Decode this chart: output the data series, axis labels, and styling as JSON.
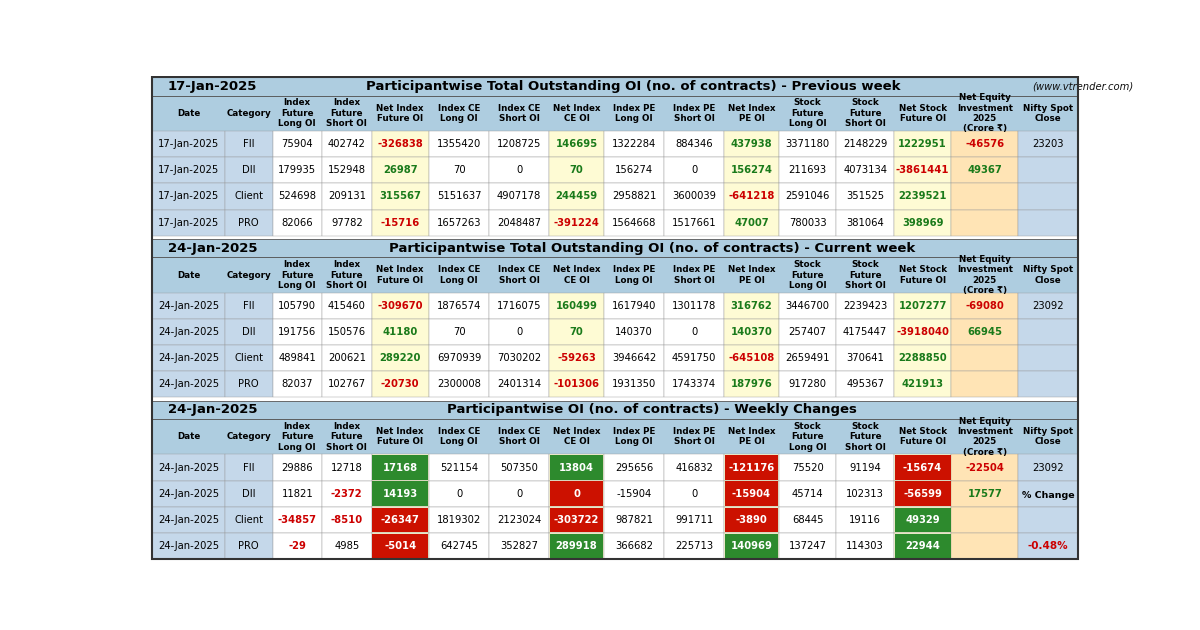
{
  "title1": "17-Jan-2025",
  "title1_main": "Participantwise Total Outstanding OI (no. of contracts) - Previous week",
  "title1_website": "(www.vtrender.com)",
  "title2": "24-Jan-2025",
  "title2_main": "Participantwise Total Outstanding OI (no. of contracts) - Current week",
  "title3": "24-Jan-2025",
  "title3_main": "Participantwise OI (no. of contracts) - Weekly Changes",
  "headers": [
    "Date",
    "Category",
    "Index\nFuture\nLong OI",
    "Index\nFuture\nShort OI",
    "Net Index\nFuture OI",
    "Index CE\nLong OI",
    "Index CE\nShort OI",
    "Net Index\nCE OI",
    "Index PE\nLong OI",
    "Index PE\nShort OI",
    "Net Index\nPE OI",
    "Stock\nFuture\nLong OI",
    "Stock\nFuture\nShort OI",
    "Net Stock\nFuture OI",
    "Net Equity\nInvestment\n2025\n(Crore ₹)",
    "Nifty Spot\nClose"
  ],
  "section1_rows": [
    [
      "17-Jan-2025",
      "FII",
      "75904",
      "402742",
      "-326838",
      "1355420",
      "1208725",
      "146695",
      "1322284",
      "884346",
      "437938",
      "3371180",
      "2148229",
      "1222951",
      "-46576",
      "23203"
    ],
    [
      "17-Jan-2025",
      "DII",
      "179935",
      "152948",
      "26987",
      "70",
      "0",
      "70",
      "156274",
      "0",
      "156274",
      "211693",
      "4073134",
      "-3861441",
      "49367",
      ""
    ],
    [
      "17-Jan-2025",
      "Client",
      "524698",
      "209131",
      "315567",
      "5151637",
      "4907178",
      "244459",
      "2958821",
      "3600039",
      "-641218",
      "2591046",
      "351525",
      "2239521",
      "",
      ""
    ],
    [
      "17-Jan-2025",
      "PRO",
      "82066",
      "97782",
      "-15716",
      "1657263",
      "2048487",
      "-391224",
      "1564668",
      "1517661",
      "47007",
      "780033",
      "381064",
      "398969",
      "",
      ""
    ]
  ],
  "section2_rows": [
    [
      "24-Jan-2025",
      "FII",
      "105790",
      "415460",
      "-309670",
      "1876574",
      "1716075",
      "160499",
      "1617940",
      "1301178",
      "316762",
      "3446700",
      "2239423",
      "1207277",
      "-69080",
      "23092"
    ],
    [
      "24-Jan-2025",
      "DII",
      "191756",
      "150576",
      "41180",
      "70",
      "0",
      "70",
      "140370",
      "0",
      "140370",
      "257407",
      "4175447",
      "-3918040",
      "66945",
      ""
    ],
    [
      "24-Jan-2025",
      "Client",
      "489841",
      "200621",
      "289220",
      "6970939",
      "7030202",
      "-59263",
      "3946642",
      "4591750",
      "-645108",
      "2659491",
      "370641",
      "2288850",
      "",
      ""
    ],
    [
      "24-Jan-2025",
      "PRO",
      "82037",
      "102767",
      "-20730",
      "2300008",
      "2401314",
      "-101306",
      "1931350",
      "1743374",
      "187976",
      "917280",
      "495367",
      "421913",
      "",
      ""
    ]
  ],
  "section3_rows": [
    [
      "24-Jan-2025",
      "FII",
      "29886",
      "12718",
      "17168",
      "521154",
      "507350",
      "13804",
      "295656",
      "416832",
      "-121176",
      "75520",
      "91194",
      "-15674",
      "-22504",
      "23092"
    ],
    [
      "24-Jan-2025",
      "DII",
      "11821",
      "-2372",
      "14193",
      "0",
      "0",
      "0",
      "-15904",
      "0",
      "-15904",
      "45714",
      "102313",
      "-56599",
      "17577",
      ""
    ],
    [
      "24-Jan-2025",
      "Client",
      "-34857",
      "-8510",
      "-26347",
      "1819302",
      "2123024",
      "-303722",
      "987821",
      "991711",
      "-3890",
      "68445",
      "19116",
      "49329",
      "",
      ""
    ],
    [
      "24-Jan-2025",
      "PRO",
      "-29",
      "4985",
      "-5014",
      "642745",
      "352827",
      "289918",
      "366682",
      "225713",
      "140969",
      "137247",
      "114303",
      "22944",
      "",
      ""
    ]
  ],
  "pct_change": "-0.48%",
  "color_positive": "#1A7A1A",
  "color_negative": "#CC0000",
  "color_neutral": "#000000",
  "col_bg_datecategory": "#C5D8EA",
  "col_bg_net": "#FEFBD4",
  "col_bg_equity": "#FFE4B5",
  "col_bg_nifty": "#C5D8EA",
  "col_bg_plain": "#FFFFFF",
  "title_bg": "#AECDE0",
  "header_bg": "#AECDE0",
  "section_gap_bg": "#D0D0D0"
}
